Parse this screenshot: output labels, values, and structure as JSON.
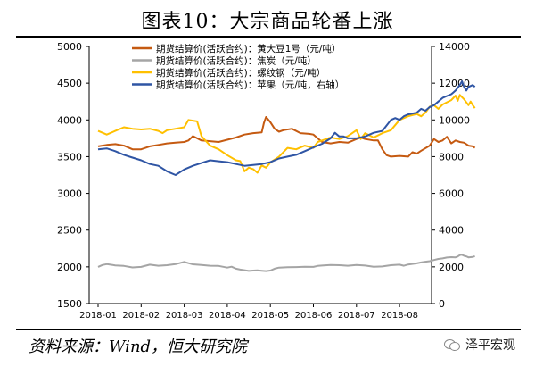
{
  "title": "图表10：大宗商品轮番上涨",
  "source": "资料来源：Wind，恒大研究院",
  "watermark": "泽平宏观",
  "chart_data": {
    "type": "line",
    "left_axis": {
      "min": 1500,
      "max": 5000,
      "ticks": [
        "1500",
        "2000",
        "2500",
        "3000",
        "3500",
        "4000",
        "4500",
        "5000"
      ]
    },
    "right_axis": {
      "min": 0,
      "max": 14000,
      "ticks": [
        "0",
        "2000",
        "4000",
        "6000",
        "8000",
        "10000",
        "12000",
        "14000"
      ]
    },
    "x_ticks": [
      "2018-01",
      "2018-02",
      "2018-03",
      "2018-04",
      "2018-05",
      "2018-06",
      "2018-07",
      "2018-08"
    ],
    "series": [
      {
        "name": "期货结算价(活跃合约)：黄大豆1号（元/吨）",
        "color": "#c55a11",
        "axis": "left",
        "points": [
          [
            0,
            3640
          ],
          [
            0.2,
            3660
          ],
          [
            0.4,
            3670
          ],
          [
            0.6,
            3650
          ],
          [
            0.8,
            3600
          ],
          [
            1.0,
            3600
          ],
          [
            1.2,
            3640
          ],
          [
            1.4,
            3660
          ],
          [
            1.6,
            3680
          ],
          [
            1.8,
            3690
          ],
          [
            2.0,
            3700
          ],
          [
            2.1,
            3720
          ],
          [
            2.2,
            3780
          ],
          [
            2.4,
            3720
          ],
          [
            2.6,
            3710
          ],
          [
            2.8,
            3700
          ],
          [
            3.0,
            3730
          ],
          [
            3.2,
            3760
          ],
          [
            3.4,
            3800
          ],
          [
            3.6,
            3820
          ],
          [
            3.8,
            3830
          ],
          [
            3.85,
            3960
          ],
          [
            3.9,
            4040
          ],
          [
            4.0,
            3970
          ],
          [
            4.1,
            3880
          ],
          [
            4.2,
            3840
          ],
          [
            4.3,
            3860
          ],
          [
            4.5,
            3880
          ],
          [
            4.7,
            3820
          ],
          [
            4.9,
            3810
          ],
          [
            5.0,
            3800
          ],
          [
            5.1,
            3750
          ],
          [
            5.2,
            3700
          ],
          [
            5.4,
            3680
          ],
          [
            5.6,
            3700
          ],
          [
            5.8,
            3690
          ],
          [
            6.0,
            3740
          ],
          [
            6.1,
            3760
          ],
          [
            6.2,
            3740
          ],
          [
            6.4,
            3720
          ],
          [
            6.5,
            3720
          ],
          [
            6.6,
            3600
          ],
          [
            6.7,
            3520
          ],
          [
            6.8,
            3500
          ],
          [
            7.0,
            3510
          ],
          [
            7.2,
            3500
          ],
          [
            7.3,
            3560
          ],
          [
            7.4,
            3540
          ],
          [
            7.5,
            3580
          ],
          [
            7.7,
            3650
          ],
          [
            7.8,
            3740
          ],
          [
            7.9,
            3700
          ],
          [
            8.0,
            3720
          ],
          [
            8.1,
            3770
          ],
          [
            8.2,
            3680
          ],
          [
            8.3,
            3720
          ],
          [
            8.4,
            3700
          ],
          [
            8.5,
            3690
          ],
          [
            8.6,
            3650
          ],
          [
            8.7,
            3640
          ],
          [
            8.75,
            3620
          ]
        ]
      },
      {
        "name": "期货结算价(活跃合约)：焦炭（元/吨）",
        "color": "#a5a5a5",
        "axis": "right",
        "points": [
          [
            0,
            2000
          ],
          [
            0.1,
            2100
          ],
          [
            0.2,
            2150
          ],
          [
            0.4,
            2080
          ],
          [
            0.6,
            2050
          ],
          [
            0.8,
            1970
          ],
          [
            1.0,
            2000
          ],
          [
            1.2,
            2120
          ],
          [
            1.4,
            2060
          ],
          [
            1.6,
            2090
          ],
          [
            1.8,
            2150
          ],
          [
            2.0,
            2270
          ],
          [
            2.1,
            2200
          ],
          [
            2.2,
            2140
          ],
          [
            2.4,
            2100
          ],
          [
            2.6,
            2060
          ],
          [
            2.8,
            2050
          ],
          [
            3.0,
            1960
          ],
          [
            3.1,
            2010
          ],
          [
            3.2,
            1900
          ],
          [
            3.3,
            1850
          ],
          [
            3.4,
            1820
          ],
          [
            3.5,
            1780
          ],
          [
            3.6,
            1800
          ],
          [
            3.7,
            1810
          ],
          [
            3.8,
            1790
          ],
          [
            3.9,
            1770
          ],
          [
            4.0,
            1800
          ],
          [
            4.1,
            1900
          ],
          [
            4.2,
            1960
          ],
          [
            4.4,
            1980
          ],
          [
            4.6,
            1990
          ],
          [
            4.8,
            2010
          ],
          [
            5.0,
            2000
          ],
          [
            5.1,
            2050
          ],
          [
            5.2,
            2070
          ],
          [
            5.4,
            2100
          ],
          [
            5.6,
            2090
          ],
          [
            5.8,
            2060
          ],
          [
            6.0,
            2100
          ],
          [
            6.2,
            2070
          ],
          [
            6.4,
            2010
          ],
          [
            6.6,
            2020
          ],
          [
            6.8,
            2090
          ],
          [
            7.0,
            2120
          ],
          [
            7.1,
            2060
          ],
          [
            7.2,
            2130
          ],
          [
            7.4,
            2190
          ],
          [
            7.5,
            2240
          ],
          [
            7.6,
            2280
          ],
          [
            7.7,
            2310
          ],
          [
            7.8,
            2370
          ],
          [
            7.9,
            2430
          ],
          [
            8.0,
            2460
          ],
          [
            8.1,
            2510
          ],
          [
            8.2,
            2530
          ],
          [
            8.3,
            2520
          ],
          [
            8.35,
            2560
          ],
          [
            8.4,
            2640
          ],
          [
            8.45,
            2660
          ],
          [
            8.5,
            2600
          ],
          [
            8.55,
            2570
          ],
          [
            8.6,
            2520
          ],
          [
            8.7,
            2540
          ],
          [
            8.75,
            2580
          ]
        ]
      },
      {
        "name": "期货结算价(活跃合约)：螺纹钢（元/吨）",
        "color": "#ffc000",
        "axis": "left",
        "points": [
          [
            0,
            3850
          ],
          [
            0.2,
            3800
          ],
          [
            0.4,
            3850
          ],
          [
            0.6,
            3900
          ],
          [
            0.8,
            3880
          ],
          [
            1.0,
            3870
          ],
          [
            1.2,
            3880
          ],
          [
            1.4,
            3850
          ],
          [
            1.5,
            3820
          ],
          [
            1.6,
            3860
          ],
          [
            1.8,
            3880
          ],
          [
            2.0,
            3900
          ],
          [
            2.1,
            4000
          ],
          [
            2.2,
            3990
          ],
          [
            2.3,
            3980
          ],
          [
            2.4,
            3780
          ],
          [
            2.6,
            3650
          ],
          [
            2.8,
            3600
          ],
          [
            3.0,
            3520
          ],
          [
            3.2,
            3450
          ],
          [
            3.3,
            3440
          ],
          [
            3.4,
            3300
          ],
          [
            3.5,
            3350
          ],
          [
            3.6,
            3330
          ],
          [
            3.7,
            3280
          ],
          [
            3.8,
            3380
          ],
          [
            3.9,
            3350
          ],
          [
            4.0,
            3420
          ],
          [
            4.2,
            3500
          ],
          [
            4.4,
            3620
          ],
          [
            4.6,
            3600
          ],
          [
            4.8,
            3650
          ],
          [
            5.0,
            3620
          ],
          [
            5.1,
            3700
          ],
          [
            5.2,
            3720
          ],
          [
            5.4,
            3760
          ],
          [
            5.6,
            3740
          ],
          [
            5.8,
            3780
          ],
          [
            6.0,
            3860
          ],
          [
            6.1,
            3740
          ],
          [
            6.2,
            3820
          ],
          [
            6.4,
            3760
          ],
          [
            6.6,
            3820
          ],
          [
            6.8,
            3860
          ],
          [
            7.0,
            4000
          ],
          [
            7.2,
            4050
          ],
          [
            7.4,
            4080
          ],
          [
            7.5,
            4050
          ],
          [
            7.6,
            4100
          ],
          [
            7.7,
            4180
          ],
          [
            7.8,
            4200
          ],
          [
            7.9,
            4150
          ],
          [
            8.0,
            4210
          ],
          [
            8.2,
            4270
          ],
          [
            8.3,
            4330
          ],
          [
            8.35,
            4260
          ],
          [
            8.4,
            4340
          ],
          [
            8.5,
            4280
          ],
          [
            8.6,
            4200
          ],
          [
            8.65,
            4250
          ],
          [
            8.7,
            4200
          ],
          [
            8.75,
            4160
          ]
        ]
      },
      {
        "name": "期货结算价(活跃合约)：苹果（元/吨，右轴）",
        "color": "#2f55a4",
        "axis": "right",
        "points": [
          [
            0,
            8400
          ],
          [
            0.2,
            8450
          ],
          [
            0.4,
            8300
          ],
          [
            0.6,
            8100
          ],
          [
            0.8,
            7950
          ],
          [
            1.0,
            7800
          ],
          [
            1.2,
            7600
          ],
          [
            1.4,
            7500
          ],
          [
            1.6,
            7200
          ],
          [
            1.8,
            7000
          ],
          [
            2.0,
            7300
          ],
          [
            2.2,
            7500
          ],
          [
            2.4,
            7650
          ],
          [
            2.6,
            7800
          ],
          [
            2.8,
            7750
          ],
          [
            3.0,
            7700
          ],
          [
            3.2,
            7600
          ],
          [
            3.4,
            7500
          ],
          [
            3.6,
            7550
          ],
          [
            3.8,
            7600
          ],
          [
            4.0,
            7700
          ],
          [
            4.2,
            7900
          ],
          [
            4.4,
            8000
          ],
          [
            4.6,
            8100
          ],
          [
            4.8,
            8300
          ],
          [
            5.0,
            8500
          ],
          [
            5.2,
            8700
          ],
          [
            5.4,
            9000
          ],
          [
            5.5,
            9300
          ],
          [
            5.6,
            9100
          ],
          [
            5.7,
            9100
          ],
          [
            5.8,
            9000
          ],
          [
            6.0,
            9000
          ],
          [
            6.2,
            9100
          ],
          [
            6.4,
            9300
          ],
          [
            6.6,
            9400
          ],
          [
            6.7,
            9700
          ],
          [
            6.8,
            10000
          ],
          [
            6.9,
            10100
          ],
          [
            7.0,
            10000
          ],
          [
            7.1,
            10200
          ],
          [
            7.2,
            10300
          ],
          [
            7.4,
            10400
          ],
          [
            7.5,
            10600
          ],
          [
            7.6,
            10500
          ],
          [
            7.7,
            10700
          ],
          [
            7.8,
            10800
          ],
          [
            7.9,
            11000
          ],
          [
            8.0,
            11200
          ],
          [
            8.1,
            11300
          ],
          [
            8.2,
            11400
          ],
          [
            8.3,
            11600
          ],
          [
            8.4,
            11900
          ],
          [
            8.45,
            12100
          ],
          [
            8.5,
            11800
          ],
          [
            8.55,
            11600
          ],
          [
            8.6,
            11800
          ],
          [
            8.7,
            11900
          ],
          [
            8.75,
            11800
          ]
        ]
      }
    ]
  }
}
